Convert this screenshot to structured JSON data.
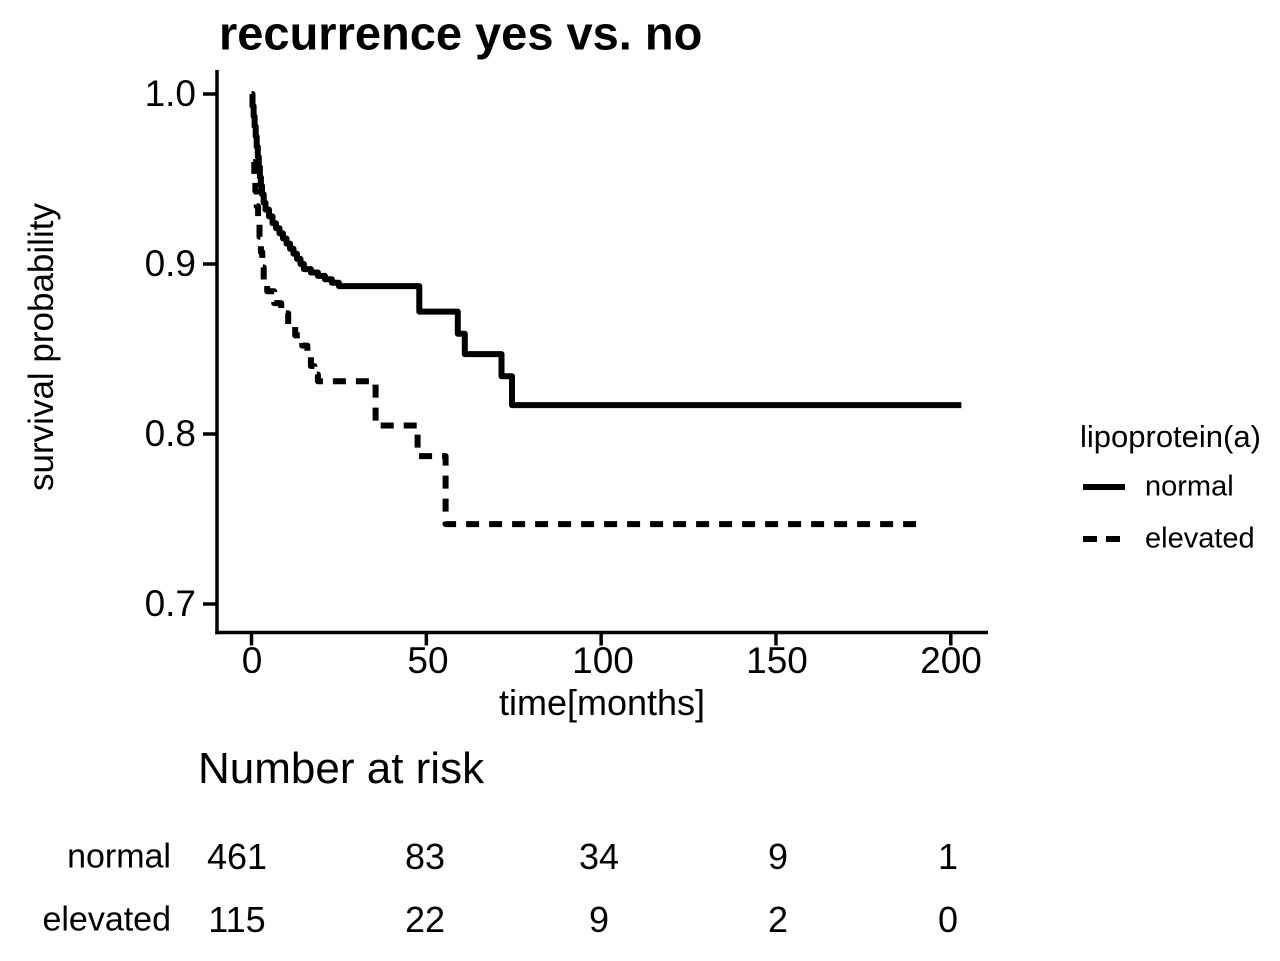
{
  "title": "recurrence yes vs. no",
  "axes": {
    "x_label": "time[months]",
    "y_label": "survival probability",
    "x_tick_labels": [
      "0",
      "50",
      "100",
      "150",
      "200"
    ],
    "y_tick_labels": [
      "1.0",
      "0.9",
      "0.8",
      "0.7"
    ]
  },
  "legend": {
    "title": "lipoprotein(a)",
    "items": [
      {
        "label": "normal",
        "line_style": "solid"
      },
      {
        "label": "elevated",
        "line_style": "dashed"
      }
    ]
  },
  "risk_table": {
    "title": "Number at risk",
    "rows": [
      {
        "label": "normal",
        "counts": [
          "461",
          "83",
          "34",
          "9",
          "1"
        ]
      },
      {
        "label": "elevated",
        "counts": [
          "115",
          "22",
          "9",
          "2",
          "0"
        ]
      }
    ]
  },
  "colors": {
    "line": "#000000",
    "text": "#000000",
    "background": "#ffffff"
  },
  "chart_data": {
    "type": "line",
    "subtype": "kaplan-meier-step",
    "title": "recurrence yes vs. no",
    "xlabel": "time[months]",
    "ylabel": "survival probability",
    "xlim": [
      0,
      200
    ],
    "ylim": [
      0.7,
      1.0
    ],
    "x_ticks": [
      0,
      50,
      100,
      150,
      200
    ],
    "y_ticks": [
      1.0,
      0.9,
      0.8,
      0.7
    ],
    "grid": false,
    "legend_position": "right",
    "legend_title": "lipoprotein(a)",
    "series": [
      {
        "name": "normal",
        "line": "solid",
        "end_time": 203,
        "steps": [
          [
            0,
            1.0
          ],
          [
            0.3,
            0.993
          ],
          [
            0.6,
            0.987
          ],
          [
            0.9,
            0.981
          ],
          [
            1.2,
            0.975
          ],
          [
            1.5,
            0.969
          ],
          [
            1.8,
            0.963
          ],
          [
            2.1,
            0.957
          ],
          [
            2.4,
            0.951
          ],
          [
            2.7,
            0.946
          ],
          [
            3.0,
            0.941
          ],
          [
            3.5,
            0.936
          ],
          [
            4.0,
            0.932
          ],
          [
            5.0,
            0.928
          ],
          [
            6.0,
            0.924
          ],
          [
            7.0,
            0.921
          ],
          [
            8.0,
            0.918
          ],
          [
            9.0,
            0.915
          ],
          [
            10,
            0.912
          ],
          [
            11,
            0.909
          ],
          [
            12,
            0.906
          ],
          [
            13,
            0.903
          ],
          [
            14,
            0.9
          ],
          [
            15,
            0.897
          ],
          [
            17,
            0.895
          ],
          [
            19,
            0.893
          ],
          [
            21,
            0.891
          ],
          [
            23,
            0.889
          ],
          [
            25,
            0.887
          ],
          [
            48,
            0.872
          ],
          [
            59,
            0.859
          ],
          [
            61,
            0.847
          ],
          [
            71.5,
            0.834
          ],
          [
            74.5,
            0.817
          ]
        ]
      },
      {
        "name": "elevated",
        "line": "dashed",
        "end_time": 191,
        "steps": [
          [
            0.5,
            0.96
          ],
          [
            0.8,
            0.951
          ],
          [
            1.1,
            0.943
          ],
          [
            1.5,
            0.934
          ],
          [
            1.9,
            0.925
          ],
          [
            2.3,
            0.916
          ],
          [
            2.7,
            0.907
          ],
          [
            3.1,
            0.898
          ],
          [
            3.5,
            0.89
          ],
          [
            4.5,
            0.884
          ],
          [
            6.5,
            0.877
          ],
          [
            8.5,
            0.871
          ],
          [
            10.5,
            0.864
          ],
          [
            12.5,
            0.858
          ],
          [
            14.5,
            0.852
          ],
          [
            16,
            0.846
          ],
          [
            17,
            0.84
          ],
          [
            18,
            0.835
          ],
          [
            19,
            0.831
          ],
          [
            35.5,
            0.805
          ],
          [
            47.5,
            0.787
          ],
          [
            55.5,
            0.747
          ]
        ]
      }
    ],
    "number_at_risk": {
      "times": [
        0,
        50,
        100,
        150,
        200
      ],
      "series": [
        {
          "name": "normal",
          "counts": [
            461,
            83,
            34,
            9,
            1
          ]
        },
        {
          "name": "elevated",
          "counts": [
            115,
            22,
            9,
            2,
            0
          ]
        }
      ]
    }
  }
}
